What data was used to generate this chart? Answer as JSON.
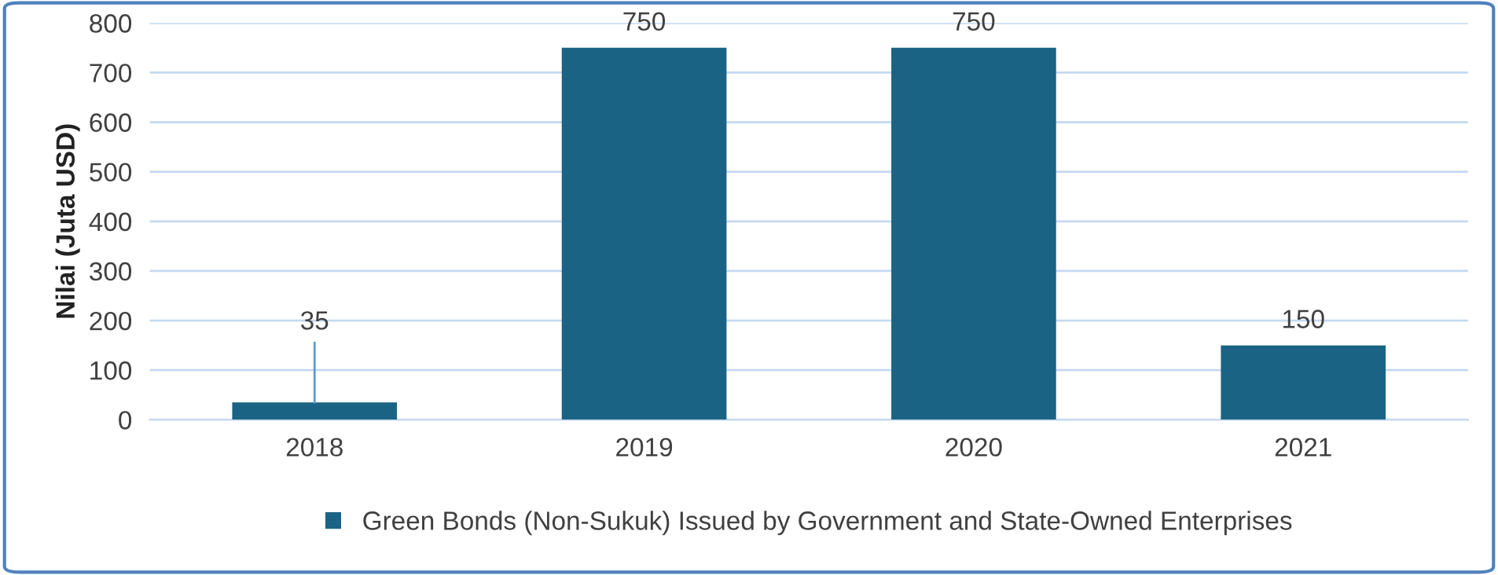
{
  "chart_data": {
    "type": "bar",
    "ylabel": "Nilai (Juta USD)",
    "categories": [
      "2018",
      "2019",
      "2020",
      "2021"
    ],
    "series": [
      {
        "name": "Green Bonds (Non-Sukuk) Issued by Government and State-Owned Enterprises",
        "color": "#1b6384",
        "values": [
          35,
          750,
          750,
          150
        ]
      }
    ],
    "ylim": [
      0,
      800
    ],
    "yticks": [
      0,
      100,
      200,
      300,
      400,
      500,
      600,
      700,
      800
    ],
    "grid": "y",
    "legend": "bottom",
    "data_labels": true
  }
}
